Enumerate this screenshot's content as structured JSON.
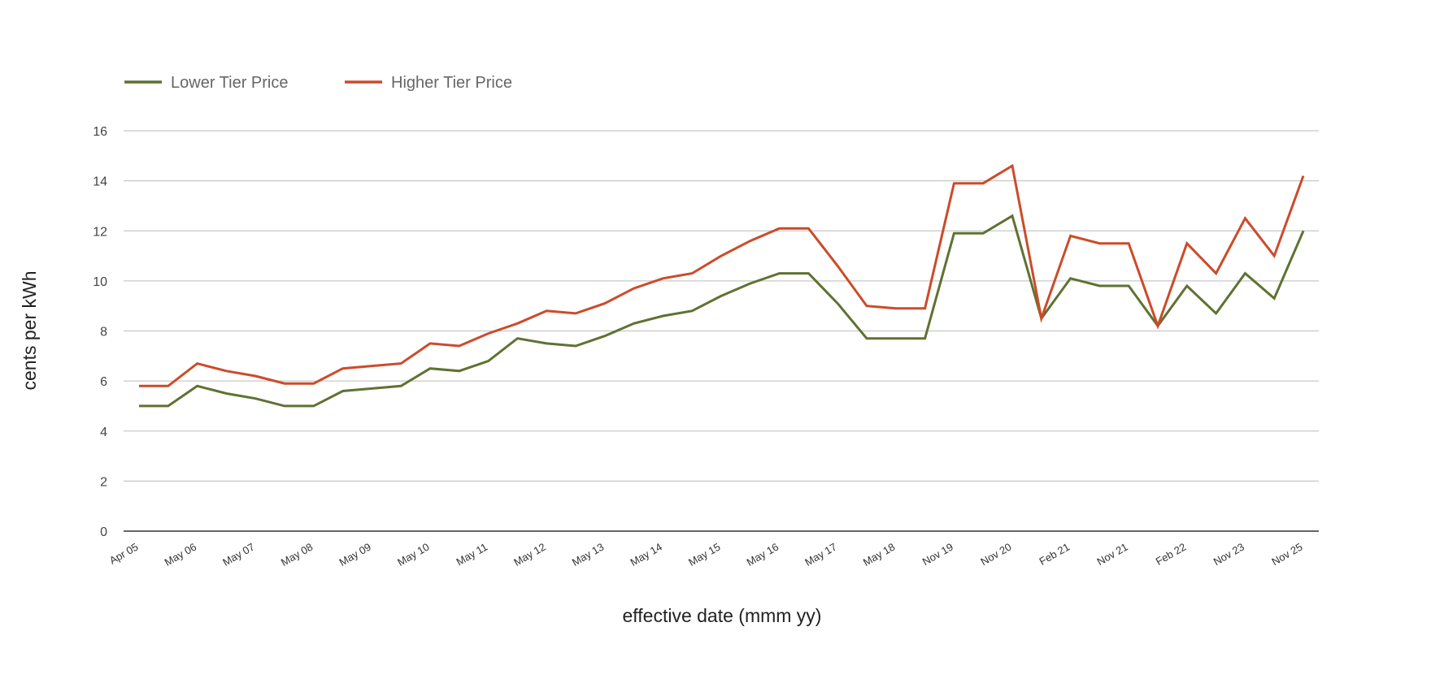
{
  "chart_data": {
    "type": "line",
    "title": "",
    "xlabel": "effective date (mmm yy)",
    "ylabel": "cents per kWh",
    "ylim": [
      0,
      16
    ],
    "yticks": [
      0,
      2,
      4,
      6,
      8,
      10,
      12,
      14,
      16
    ],
    "grid": true,
    "legend_position": "top-left",
    "tick_labels": [
      "Apr 05",
      "May 06",
      "May 07",
      "May 08",
      "May 09",
      "May 10",
      "May 11",
      "May 12",
      "May 13",
      "May 14",
      "May 15",
      "May 16",
      "May 17",
      "May 18",
      "Nov 19",
      "Nov 20",
      "Feb 21",
      "Nov 21",
      "Feb 22",
      "Nov 23",
      "Nov 25"
    ],
    "tick_label_every": 2,
    "series": [
      {
        "name": "Lower Tier Price",
        "color": "#5f7232",
        "values": [
          5.0,
          5.0,
          5.8,
          5.5,
          5.3,
          5.0,
          5.0,
          5.6,
          5.7,
          5.8,
          6.5,
          6.4,
          6.8,
          7.7,
          7.5,
          7.4,
          7.8,
          8.3,
          8.6,
          8.8,
          9.4,
          9.9,
          10.3,
          10.3,
          9.1,
          7.7,
          7.7,
          7.7,
          11.9,
          11.9,
          12.6,
          8.5,
          10.1,
          9.8,
          9.8,
          8.2,
          9.8,
          8.7,
          10.3,
          9.3,
          12.0
        ]
      },
      {
        "name": "Higher Tier Price",
        "color": "#cc4b2a",
        "values": [
          5.8,
          5.8,
          6.7,
          6.4,
          6.2,
          5.9,
          5.9,
          6.5,
          6.6,
          6.7,
          7.5,
          7.4,
          7.9,
          8.3,
          8.8,
          8.7,
          9.1,
          9.7,
          10.1,
          10.3,
          11.0,
          11.6,
          12.1,
          12.1,
          10.6,
          9.0,
          8.9,
          8.9,
          13.9,
          13.9,
          14.6,
          8.5,
          11.8,
          11.5,
          11.5,
          8.2,
          11.5,
          10.3,
          12.5,
          11.0,
          14.2
        ]
      }
    ]
  }
}
